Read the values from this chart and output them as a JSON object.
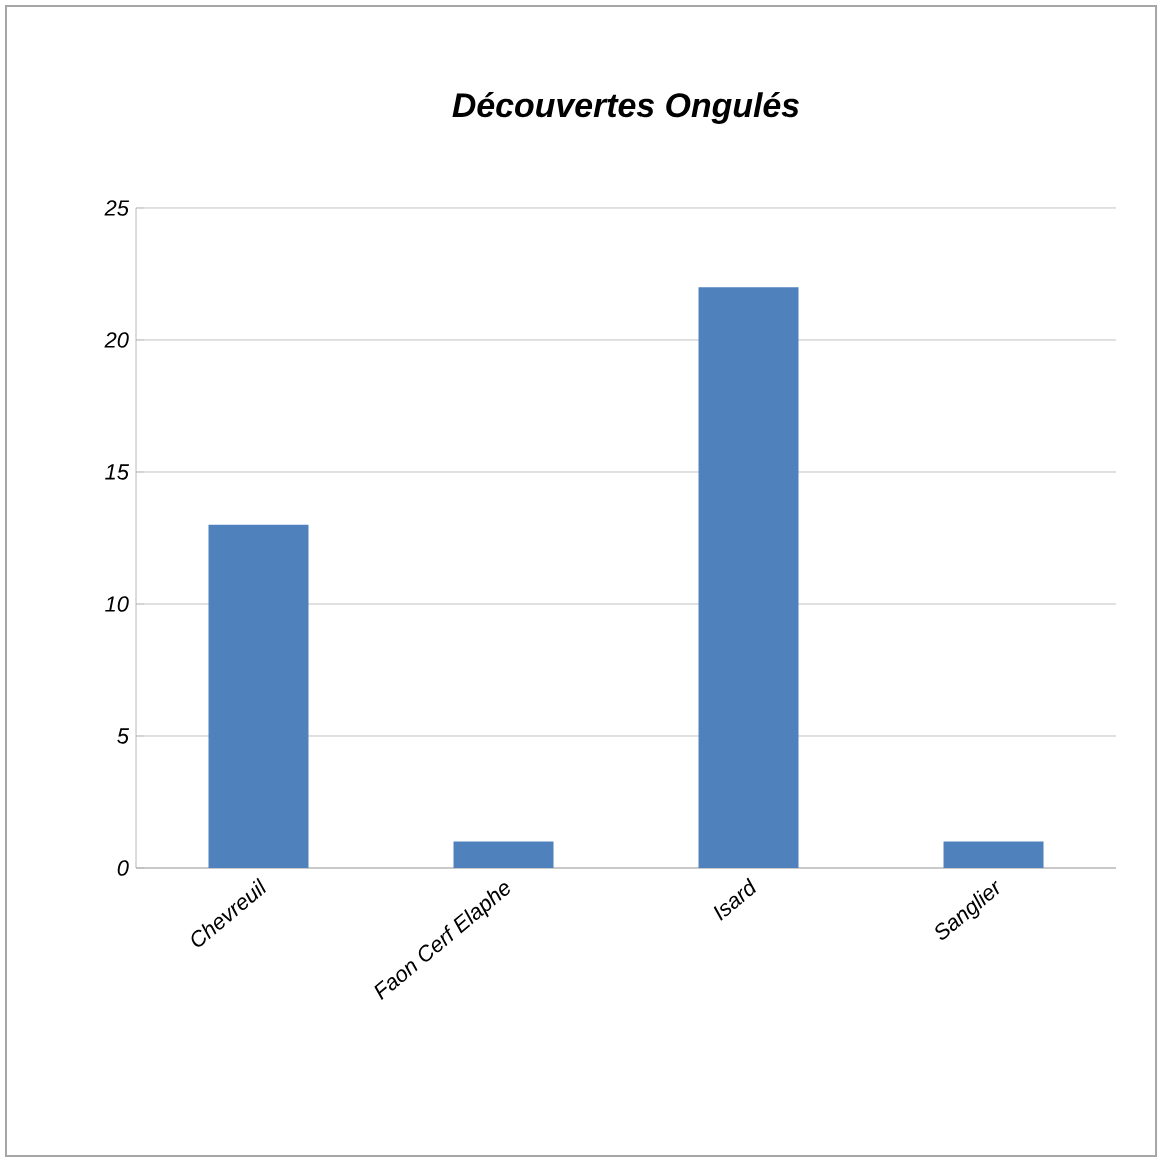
{
  "chart_data": {
    "type": "bar",
    "title": "Découvertes Ongulés",
    "categories": [
      "Chevreuil",
      "Faon Cerf Elaphe",
      "Isard",
      "Sanglier"
    ],
    "values": [
      13,
      1,
      22,
      1
    ],
    "color": "#4f81bd",
    "ylim": [
      0,
      25
    ],
    "yticks": [
      0,
      5,
      10,
      15,
      20,
      25
    ],
    "grid": "y"
  }
}
